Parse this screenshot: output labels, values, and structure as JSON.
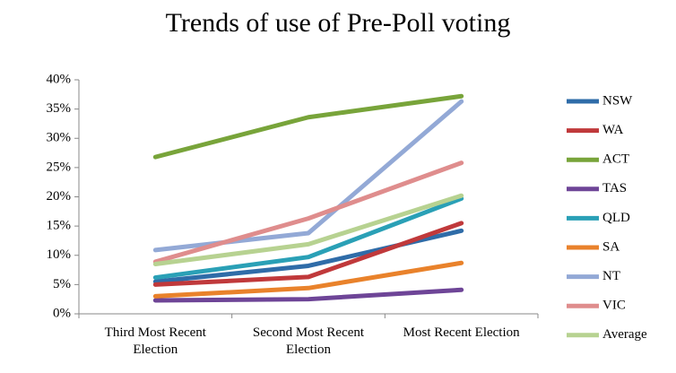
{
  "chart_data": {
    "type": "line",
    "title": "Trends of use of Pre-Poll voting",
    "categories": [
      "Third Most Recent Election",
      "Second Most Recent Election",
      "Most Recent Election"
    ],
    "series": [
      {
        "name": "NSW",
        "color": "#2f6ca8",
        "values": [
          5.5,
          8.2,
          14.2
        ]
      },
      {
        "name": "WA",
        "color": "#c0393b",
        "values": [
          5.0,
          6.3,
          15.5
        ]
      },
      {
        "name": "ACT",
        "color": "#78a43a",
        "values": [
          26.8,
          33.6,
          37.2
        ]
      },
      {
        "name": "TAS",
        "color": "#6e4597",
        "values": [
          2.3,
          2.5,
          4.1
        ]
      },
      {
        "name": "QLD",
        "color": "#2aa0b6",
        "values": [
          6.2,
          9.7,
          19.7
        ]
      },
      {
        "name": "SA",
        "color": "#e9822b",
        "values": [
          3.0,
          4.4,
          8.7
        ]
      },
      {
        "name": "NT",
        "color": "#93a9d6",
        "values": [
          10.9,
          13.8,
          36.3
        ]
      },
      {
        "name": "VIC",
        "color": "#df8d8d",
        "values": [
          8.9,
          16.3,
          25.8
        ]
      },
      {
        "name": "Average",
        "color": "#b7d291",
        "values": [
          8.5,
          11.9,
          20.2
        ]
      }
    ],
    "ylim": [
      0,
      40
    ],
    "yticks": [
      {
        "value": 0,
        "label": "0%"
      },
      {
        "value": 5,
        "label": "5%"
      },
      {
        "value": 10,
        "label": "10%"
      },
      {
        "value": 15,
        "label": "15%"
      },
      {
        "value": 20,
        "label": "20%"
      },
      {
        "value": 25,
        "label": "25%"
      },
      {
        "value": 30,
        "label": "30%"
      },
      {
        "value": 35,
        "label": "35%"
      },
      {
        "value": 40,
        "label": "40%"
      }
    ],
    "legend": "right"
  }
}
